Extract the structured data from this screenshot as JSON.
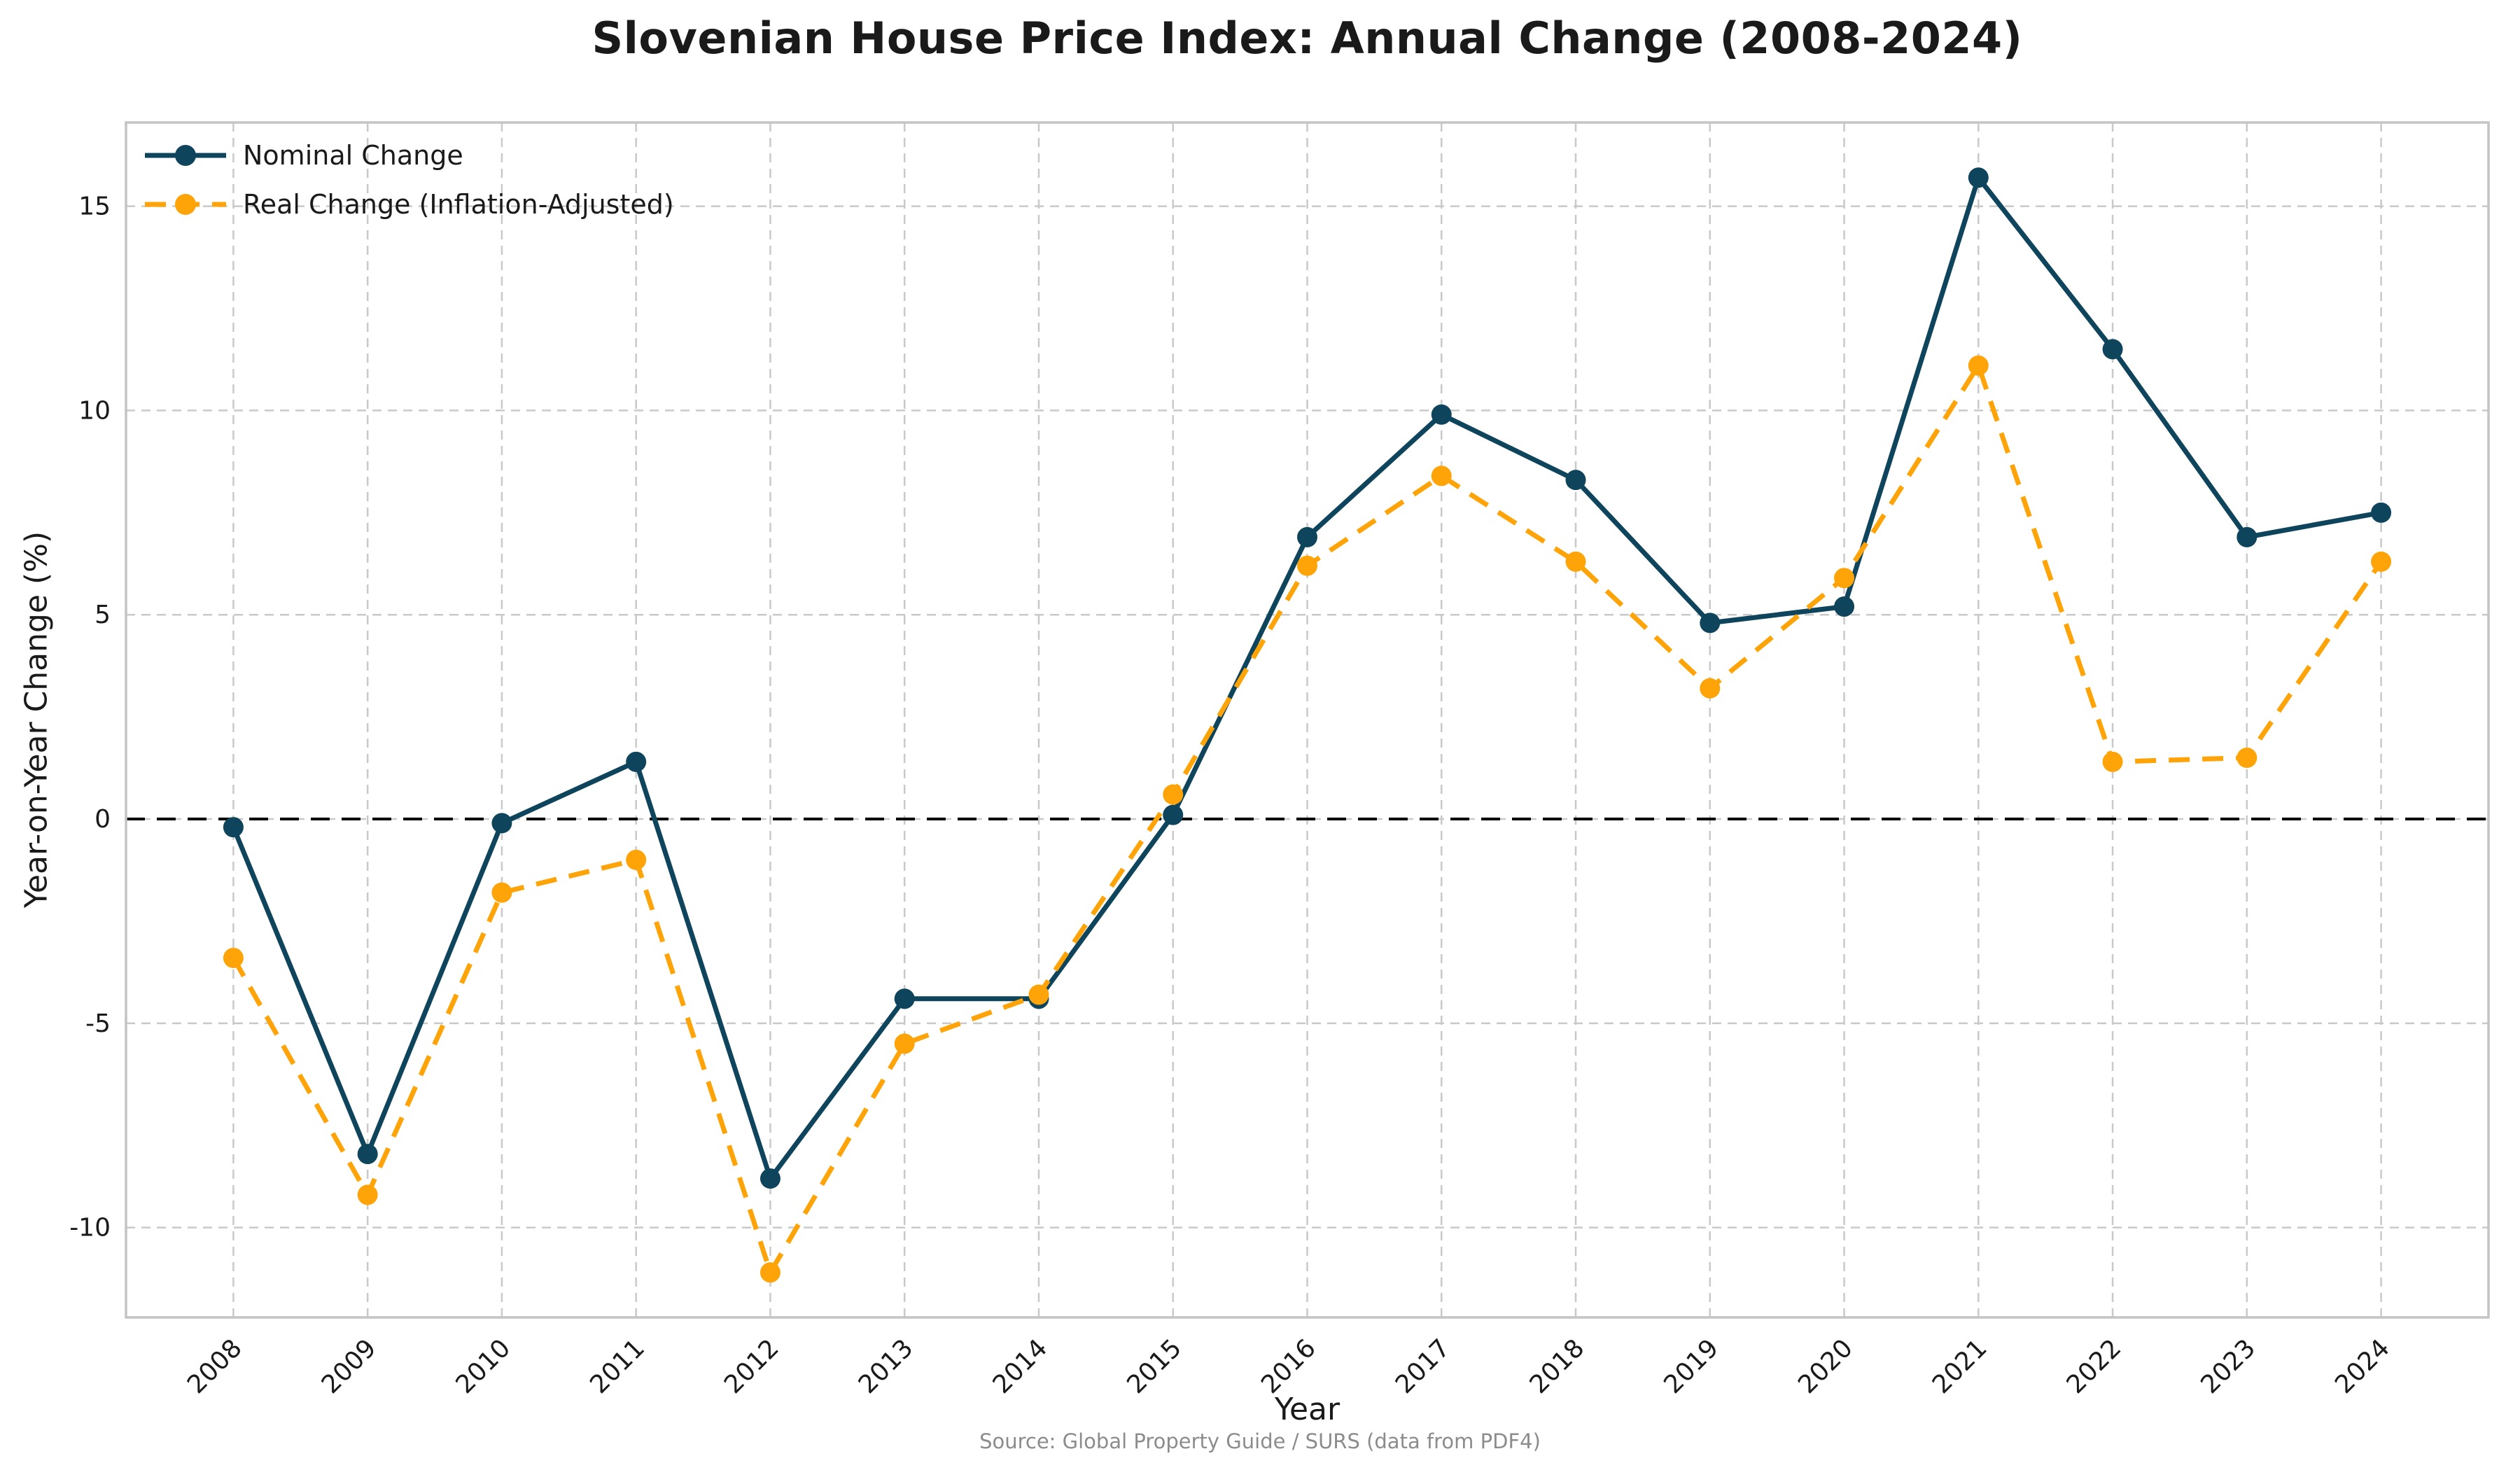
{
  "title": "Slovenian House Price Index: Annual Change (2008-2024)",
  "xlabel": "Year",
  "ylabel": "Year-on-Year Change (%)",
  "source": "Source: Global Property Guide / SURS (data from PDF4)",
  "legend": {
    "items": [
      {
        "label": "Nominal Change"
      },
      {
        "label": "Real Change (Inflation-Adjusted)"
      }
    ]
  },
  "chart_data": {
    "type": "line",
    "title": "Slovenian House Price Index: Annual Change (2008-2024)",
    "xlabel": "Year",
    "ylabel": "Year-on-Year Change (%)",
    "x": [
      2008,
      2009,
      2010,
      2011,
      2012,
      2013,
      2014,
      2015,
      2016,
      2017,
      2018,
      2019,
      2020,
      2021,
      2022,
      2023,
      2024
    ],
    "series": [
      {
        "name": "Nominal Change",
        "color": "#0f455c",
        "line_style": "solid",
        "marker": "circle",
        "values": [
          -0.2,
          -8.2,
          -0.1,
          1.4,
          -8.8,
          -4.4,
          -4.4,
          0.1,
          6.9,
          9.9,
          8.3,
          4.8,
          5.2,
          15.7,
          11.5,
          6.9,
          7.5
        ]
      },
      {
        "name": "Real Change (Inflation-Adjusted)",
        "color": "#ffa408",
        "line_style": "dashed",
        "marker": "circle",
        "values": [
          -3.4,
          -9.2,
          -1.8,
          -1.0,
          -11.1,
          -5.5,
          -4.3,
          0.6,
          6.2,
          8.4,
          6.3,
          3.2,
          5.9,
          11.1,
          1.4,
          1.5,
          6.3
        ]
      }
    ],
    "yticks": [
      -10,
      -5,
      0,
      5,
      10,
      15
    ],
    "ylim": [
      -12.2,
      17.05
    ],
    "x_pad_years": 0.8,
    "grid": true,
    "zero_line": true,
    "zero_line_color": "#000000",
    "grid_color": "#c9c9c9",
    "border_color": "#c4c4c4",
    "legend_position": "upper left",
    "background": "#ffffff"
  }
}
